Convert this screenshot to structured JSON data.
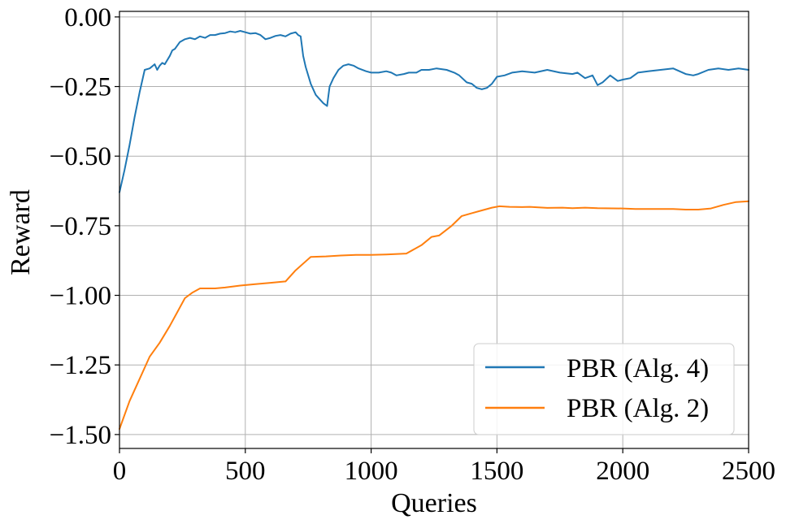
{
  "chart_data": {
    "type": "line",
    "xlabel": "Queries",
    "ylabel": "Reward",
    "xlim": [
      0,
      2500
    ],
    "ylim": [
      -1.55,
      0.02
    ],
    "xticks": [
      0,
      500,
      1000,
      1500,
      2000,
      2500
    ],
    "yticks": [
      0.0,
      -0.25,
      -0.5,
      -0.75,
      -1.0,
      -1.25,
      -1.5
    ],
    "xtick_labels": [
      "0",
      "500",
      "1000",
      "1500",
      "2000",
      "2500"
    ],
    "ytick_labels": [
      "0.00",
      "−0.25",
      "−0.50",
      "−0.75",
      "−1.00",
      "−1.25",
      "−1.50"
    ],
    "grid": true,
    "legend_position": "lower-right",
    "series": [
      {
        "name": "PBR (Alg. 4)",
        "color": "#1f77b4",
        "x": [
          0,
          20,
          40,
          60,
          80,
          100,
          120,
          140,
          150,
          160,
          170,
          180,
          200,
          210,
          220,
          240,
          260,
          280,
          300,
          320,
          340,
          360,
          380,
          400,
          420,
          440,
          460,
          480,
          500,
          520,
          540,
          560,
          580,
          600,
          620,
          640,
          660,
          680,
          700,
          710,
          720,
          730,
          740,
          760,
          780,
          800,
          810,
          825,
          835,
          850,
          870,
          890,
          910,
          930,
          950,
          980,
          1000,
          1030,
          1060,
          1080,
          1100,
          1130,
          1150,
          1180,
          1200,
          1230,
          1260,
          1300,
          1330,
          1350,
          1380,
          1400,
          1420,
          1440,
          1460,
          1480,
          1500,
          1530,
          1560,
          1600,
          1650,
          1700,
          1750,
          1800,
          1820,
          1850,
          1880,
          1900,
          1920,
          1950,
          1980,
          2000,
          2030,
          2060,
          2100,
          2150,
          2200,
          2250,
          2280,
          2300,
          2340,
          2380,
          2420,
          2460,
          2500
        ],
        "y": [
          -0.63,
          -0.55,
          -0.46,
          -0.36,
          -0.27,
          -0.19,
          -0.185,
          -0.17,
          -0.19,
          -0.175,
          -0.165,
          -0.17,
          -0.14,
          -0.12,
          -0.115,
          -0.09,
          -0.08,
          -0.075,
          -0.08,
          -0.07,
          -0.075,
          -0.065,
          -0.065,
          -0.06,
          -0.058,
          -0.052,
          -0.055,
          -0.05,
          -0.055,
          -0.06,
          -0.058,
          -0.065,
          -0.08,
          -0.075,
          -0.068,
          -0.065,
          -0.07,
          -0.06,
          -0.055,
          -0.065,
          -0.07,
          -0.14,
          -0.18,
          -0.24,
          -0.28,
          -0.3,
          -0.31,
          -0.32,
          -0.25,
          -0.22,
          -0.19,
          -0.175,
          -0.17,
          -0.175,
          -0.185,
          -0.195,
          -0.2,
          -0.2,
          -0.195,
          -0.2,
          -0.21,
          -0.205,
          -0.2,
          -0.2,
          -0.19,
          -0.19,
          -0.185,
          -0.19,
          -0.2,
          -0.21,
          -0.235,
          -0.24,
          -0.255,
          -0.26,
          -0.255,
          -0.24,
          -0.215,
          -0.21,
          -0.2,
          -0.195,
          -0.2,
          -0.19,
          -0.2,
          -0.205,
          -0.2,
          -0.22,
          -0.21,
          -0.245,
          -0.235,
          -0.21,
          -0.23,
          -0.225,
          -0.22,
          -0.2,
          -0.195,
          -0.19,
          -0.185,
          -0.205,
          -0.21,
          -0.205,
          -0.19,
          -0.185,
          -0.19,
          -0.185,
          -0.19
        ]
      },
      {
        "name": "PBR (Alg. 2)",
        "color": "#ff7f0e",
        "x": [
          0,
          40,
          80,
          120,
          160,
          200,
          230,
          260,
          290,
          320,
          380,
          420,
          480,
          540,
          600,
          660,
          700,
          760,
          820,
          880,
          940,
          1000,
          1060,
          1140,
          1200,
          1240,
          1270,
          1320,
          1360,
          1400,
          1440,
          1480,
          1510,
          1550,
          1600,
          1630,
          1700,
          1760,
          1800,
          1850,
          1900,
          2000,
          2050,
          2100,
          2200,
          2250,
          2300,
          2350,
          2400,
          2450,
          2500
        ],
        "y": [
          -1.48,
          -1.38,
          -1.3,
          -1.22,
          -1.17,
          -1.11,
          -1.06,
          -1.01,
          -0.99,
          -0.975,
          -0.975,
          -0.972,
          -0.965,
          -0.96,
          -0.955,
          -0.95,
          -0.91,
          -0.862,
          -0.86,
          -0.857,
          -0.855,
          -0.855,
          -0.853,
          -0.85,
          -0.82,
          -0.79,
          -0.785,
          -0.75,
          -0.715,
          -0.705,
          -0.695,
          -0.685,
          -0.68,
          -0.682,
          -0.683,
          -0.682,
          -0.686,
          -0.685,
          -0.687,
          -0.685,
          -0.687,
          -0.688,
          -0.69,
          -0.69,
          -0.69,
          -0.692,
          -0.692,
          -0.688,
          -0.675,
          -0.665,
          -0.662
        ]
      }
    ]
  }
}
